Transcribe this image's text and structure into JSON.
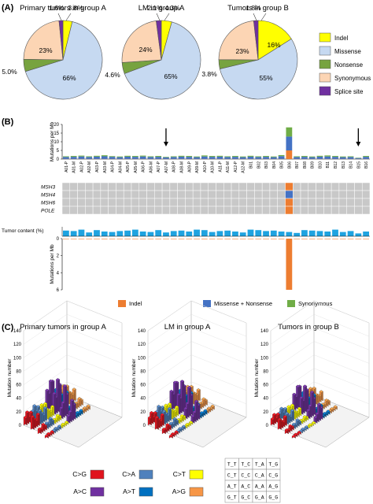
{
  "panel_labels": {
    "a": "(A)",
    "b": "(B)",
    "c": "(C)"
  },
  "chart_data": [
    {
      "type": "pie",
      "title": "Primary tumors in group A",
      "categories": [
        "Indel",
        "Missense",
        "Nonsense",
        "Synonymous",
        "Splice site"
      ],
      "values": [
        3.8,
        66,
        5.0,
        23,
        1.6
      ],
      "labels": [
        "3.8%",
        "66%",
        "5.0%",
        "23%",
        "1.6%"
      ]
    },
    {
      "type": "pie",
      "title": "LM in group A",
      "categories": [
        "Indel",
        "Missense",
        "Nonsense",
        "Synonymous",
        "Splice site"
      ],
      "values": [
        4.3,
        65,
        4.6,
        24,
        2.1
      ],
      "labels": [
        "4.3%",
        "65%",
        "4.6%",
        "24%",
        "2.1%"
      ]
    },
    {
      "type": "pie",
      "title": "Tumors in group B",
      "categories": [
        "Indel",
        "Missense",
        "Nonsense",
        "Synonymous",
        "Splice site"
      ],
      "values": [
        16,
        55,
        3.8,
        23,
        1.8
      ],
      "labels": [
        "16%",
        "55%",
        "3.8%",
        "23%",
        "1.8%"
      ]
    },
    {
      "type": "bar",
      "ylabel": "Mutations per Mb",
      "ylim": [
        0,
        20
      ],
      "yticks": [
        0,
        5,
        10,
        15,
        20
      ],
      "categories": [
        "A01-P",
        "A01-M",
        "A02-P",
        "A02-M",
        "A03-P",
        "A03-M",
        "A04-P",
        "A04-M",
        "A05-P",
        "A05-M",
        "A06-P",
        "A06-M",
        "A07-P",
        "A07-M",
        "A08-P",
        "A08-M",
        "A09-P",
        "A09-M",
        "A10-P",
        "A10-M",
        "A11-P",
        "A11-M",
        "A12-P",
        "A12-M",
        "B01",
        "B02",
        "B03",
        "B04",
        "B05",
        "B06",
        "B07",
        "B08",
        "B09",
        "B10",
        "B11",
        "B12",
        "B13",
        "B14",
        "B15",
        "B16"
      ],
      "series": [
        {
          "name": "Indel",
          "values": [
            0.1,
            0.1,
            0.1,
            0.1,
            0.1,
            0.1,
            0.1,
            0.1,
            0.1,
            0.1,
            0.1,
            0.1,
            0.1,
            0.1,
            0.1,
            0.1,
            0.1,
            0.1,
            0.1,
            0.1,
            0.1,
            0.1,
            0.1,
            0.1,
            0.1,
            0.1,
            0.1,
            0.1,
            0.1,
            5.0,
            0.1,
            0.1,
            0.1,
            0.1,
            0.1,
            0.1,
            0.1,
            0.1,
            0.1,
            0.1
          ]
        },
        {
          "name": "Missense + Nonsense",
          "values": [
            1.1,
            1.2,
            1.4,
            1.1,
            1.3,
            1.5,
            1.2,
            1.0,
            1.3,
            1.2,
            1.4,
            1.1,
            1.2,
            0.9,
            1.1,
            1.3,
            1.2,
            1.0,
            1.4,
            1.2,
            1.3,
            1.1,
            1.2,
            1.0,
            1.3,
            1.1,
            1.2,
            1.0,
            1.6,
            8.0,
            1.1,
            1.2,
            1.0,
            1.3,
            1.4,
            1.2,
            1.0,
            1.1,
            0.5,
            1.2
          ]
        },
        {
          "name": "Synonymous",
          "values": [
            0.4,
            0.5,
            0.5,
            0.4,
            0.5,
            0.6,
            0.4,
            0.4,
            0.5,
            0.5,
            0.5,
            0.4,
            0.5,
            0.3,
            0.4,
            0.5,
            0.5,
            0.4,
            0.6,
            0.5,
            0.5,
            0.4,
            0.5,
            0.4,
            0.5,
            0.4,
            0.5,
            0.4,
            0.6,
            5.3,
            0.4,
            0.5,
            0.4,
            0.5,
            0.6,
            0.5,
            0.4,
            0.4,
            0.2,
            0.5
          ]
        }
      ],
      "arrows_at": [
        "A07-M",
        "B15"
      ]
    },
    {
      "type": "heatmap",
      "rows": [
        "MSH3",
        "MSH4",
        "MSH6",
        "POLE"
      ],
      "highlight_column": "B06",
      "highlight_colors": [
        "#ed7d31",
        "#4472c4",
        "#ed7d31",
        "#ed7d31"
      ]
    },
    {
      "type": "bar",
      "ylabel": "Tumor content (%)",
      "values": [
        60,
        55,
        70,
        40,
        65,
        50,
        45,
        55,
        60,
        70,
        50,
        45,
        65,
        40,
        55,
        60,
        50,
        70,
        65,
        45,
        55,
        60,
        50,
        40,
        70,
        65,
        55,
        60,
        50,
        45,
        35,
        65,
        60,
        55,
        50,
        70,
        45,
        55,
        30,
        50
      ]
    },
    {
      "type": "bar",
      "ylabel": "Mutations per Mb",
      "ylim": [
        0,
        6
      ],
      "yticks": [
        0,
        2,
        4,
        6
      ],
      "values": [
        0.05,
        0.05,
        0.04,
        0.05,
        0.05,
        0.06,
        0.04,
        0.05,
        0.05,
        0.04,
        0.05,
        0.05,
        0.04,
        0.03,
        0.05,
        0.05,
        0.04,
        0.05,
        0.06,
        0.05,
        0.04,
        0.05,
        0.05,
        0.04,
        0.05,
        0.05,
        0.04,
        0.05,
        0.06,
        6.0,
        0.04,
        0.05,
        0.05,
        0.04,
        0.05,
        0.05,
        0.04,
        0.05,
        0.03,
        0.05
      ]
    },
    {
      "type": "bar",
      "title": "Primary tumors in group A",
      "ylabel": "Mutation number",
      "ylim": [
        0,
        140
      ],
      "yticks": [
        0,
        20,
        40,
        60,
        80,
        100,
        120,
        140
      ]
    },
    {
      "type": "bar",
      "title": "LM in group A",
      "ylabel": "Mutation number",
      "ylim": [
        0,
        140
      ],
      "yticks": [
        0,
        20,
        40,
        60,
        80,
        100,
        120,
        140
      ]
    },
    {
      "type": "bar",
      "title": "Tumors in group B",
      "ylabel": "Mutation number",
      "ylim": [
        0,
        140
      ],
      "yticks": [
        0,
        20,
        40,
        60,
        80,
        100,
        120,
        140
      ]
    }
  ],
  "pie_legend": [
    {
      "label": "Indel",
      "color": "#ffff00"
    },
    {
      "label": "Missense",
      "color": "#c6d9f1"
    },
    {
      "label": "Nonsense",
      "color": "#77a33f"
    },
    {
      "label": "Synonymous",
      "color": "#fcd5b4"
    },
    {
      "label": "Splice site",
      "color": "#7030a0"
    }
  ],
  "b_legend": [
    {
      "label": "Indel",
      "color": "#ed7d31"
    },
    {
      "label": "Missense + Nonsense",
      "color": "#4472c4"
    },
    {
      "label": "Synonymous",
      "color": "#70ad47"
    }
  ],
  "tumor_content_color": "#1fa3e0",
  "c_legend": [
    {
      "label": "C>G",
      "color": "#e0141e"
    },
    {
      "label": "C>A",
      "color": "#4f81bd"
    },
    {
      "label": "C>T",
      "color": "#ffff00"
    },
    {
      "label": "A>C",
      "color": "#7030a0"
    },
    {
      "label": "A>T",
      "color": "#0070c0"
    },
    {
      "label": "A>G",
      "color": "#f79646"
    }
  ],
  "context_grid": [
    [
      "T_T",
      "T_C",
      "T_A",
      "T_G"
    ],
    [
      "C_T",
      "C_C",
      "C_A",
      "C_G"
    ],
    [
      "A_T",
      "A_C",
      "A_A",
      "A_G"
    ],
    [
      "G_T",
      "G_C",
      "G_A",
      "G_G"
    ]
  ],
  "bar3d_heights": [
    [
      [
        12,
        18,
        10,
        14
      ],
      [
        22,
        16,
        12,
        20
      ],
      [
        10,
        8,
        14,
        9
      ],
      [
        6,
        8,
        5,
        7
      ],
      [
        8,
        10,
        6,
        9
      ],
      [
        5,
        6,
        4,
        7
      ]
    ],
    [
      [
        14,
        20,
        11,
        15
      ],
      [
        24,
        18,
        13,
        22
      ],
      [
        12,
        9,
        16,
        10
      ],
      [
        7,
        9,
        6,
        8
      ],
      [
        9,
        11,
        7,
        10
      ],
      [
        6,
        7,
        5,
        8
      ]
    ],
    [
      [
        10,
        14,
        8,
        12
      ],
      [
        18,
        14,
        10,
        16
      ],
      [
        9,
        7,
        12,
        8
      ],
      [
        5,
        7,
        4,
        6
      ],
      [
        7,
        9,
        5,
        8
      ],
      [
        4,
        5,
        3,
        6
      ]
    ],
    [
      [
        30,
        24,
        40,
        38
      ],
      [
        36,
        28,
        55,
        45
      ],
      [
        22,
        30,
        60,
        42
      ],
      [
        18,
        25,
        48,
        36
      ],
      [
        50,
        70,
        120,
        110
      ],
      [
        40,
        60,
        90,
        80
      ]
    ],
    [
      [
        16,
        22,
        14,
        18
      ],
      [
        26,
        20,
        16,
        24
      ],
      [
        14,
        12,
        18,
        13
      ],
      [
        9,
        11,
        8,
        10
      ],
      [
        11,
        13,
        9,
        12
      ],
      [
        8,
        9,
        7,
        10
      ]
    ],
    [
      [
        14,
        20,
        12,
        16
      ],
      [
        22,
        18,
        14,
        20
      ],
      [
        12,
        10,
        16,
        11
      ],
      [
        8,
        10,
        7,
        9
      ],
      [
        10,
        12,
        8,
        11
      ],
      [
        7,
        8,
        6,
        9
      ]
    ]
  ]
}
